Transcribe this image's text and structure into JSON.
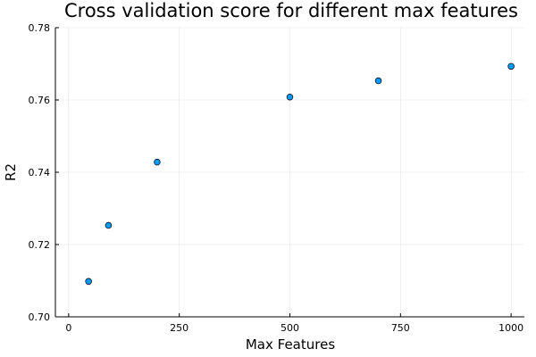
{
  "chart_data": {
    "type": "scatter",
    "title": "Cross validation score for different max features",
    "xlabel": "Max Features",
    "ylabel": "R2",
    "xlim": [
      -30,
      1030
    ],
    "ylim": [
      0.7,
      0.78
    ],
    "xticks": [
      0,
      250,
      500,
      750,
      1000
    ],
    "xtick_labels": [
      "0",
      "250",
      "500",
      "750",
      "1000"
    ],
    "yticks": [
      0.7,
      0.72,
      0.74,
      0.76,
      0.78
    ],
    "ytick_labels": [
      "0.70",
      "0.72",
      "0.74",
      "0.76",
      "0.78"
    ],
    "grid": true,
    "legend": "none",
    "marker_color": "#009AFA",
    "x": [
      45,
      90,
      200,
      500,
      700,
      1000
    ],
    "y": [
      0.7098,
      0.7253,
      0.7428,
      0.7608,
      0.7653,
      0.7693
    ]
  }
}
